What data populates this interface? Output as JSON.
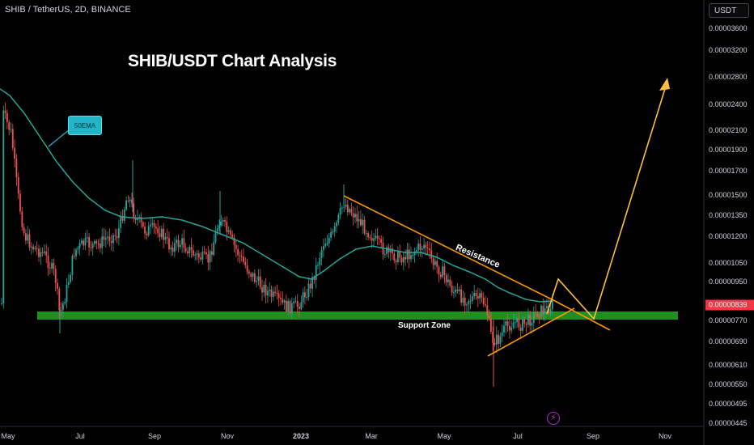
{
  "header": {
    "symbol": "SHIB / TetherUS, 2D, BINANCE",
    "analysis_title": "SHIB/USDT Chart Analysis",
    "currency": "USDT"
  },
  "annotations": {
    "ema_label": "50EMA",
    "support_label": "Support Zone",
    "resistance_label": "Resistance"
  },
  "chart_data": {
    "type": "candlestick",
    "title": "SHIB/USDT Chart Analysis",
    "interval": "2D",
    "exchange": "BINANCE",
    "y_scale": "log",
    "ylim": [
      4.4e-06,
      4.2e-06
    ],
    "y_ticks": [
      "0.00003600",
      "0.00003200",
      "0.00002800",
      "0.00002400",
      "0.00002100",
      "0.00001900",
      "0.00001700",
      "0.00001500",
      "0.00001350",
      "0.00001200",
      "0.00001050",
      "0.00000950",
      "0.00000770",
      "0.00000690",
      "0.00000610",
      "0.00000550",
      "0.00000495",
      "0.00000445"
    ],
    "current_price": "0.00000839",
    "x_ticks": [
      "May",
      "Jul",
      "Sep",
      "Nov",
      "2023",
      "Mar",
      "May",
      "Jul",
      "Sep",
      "Nov"
    ],
    "x_ticks_bold": [
      "2023"
    ],
    "support_zone": [
      7.7e-06,
      8.1e-06
    ],
    "series": [
      {
        "label": "50EMA",
        "color": "#26a69a"
      }
    ],
    "colors": {
      "up": "#26a69a",
      "down": "#ef5350",
      "ema": "#26a69a",
      "support": "#1f8f1f",
      "trend": "#ff9800",
      "projection": "#ffbf3f"
    }
  }
}
